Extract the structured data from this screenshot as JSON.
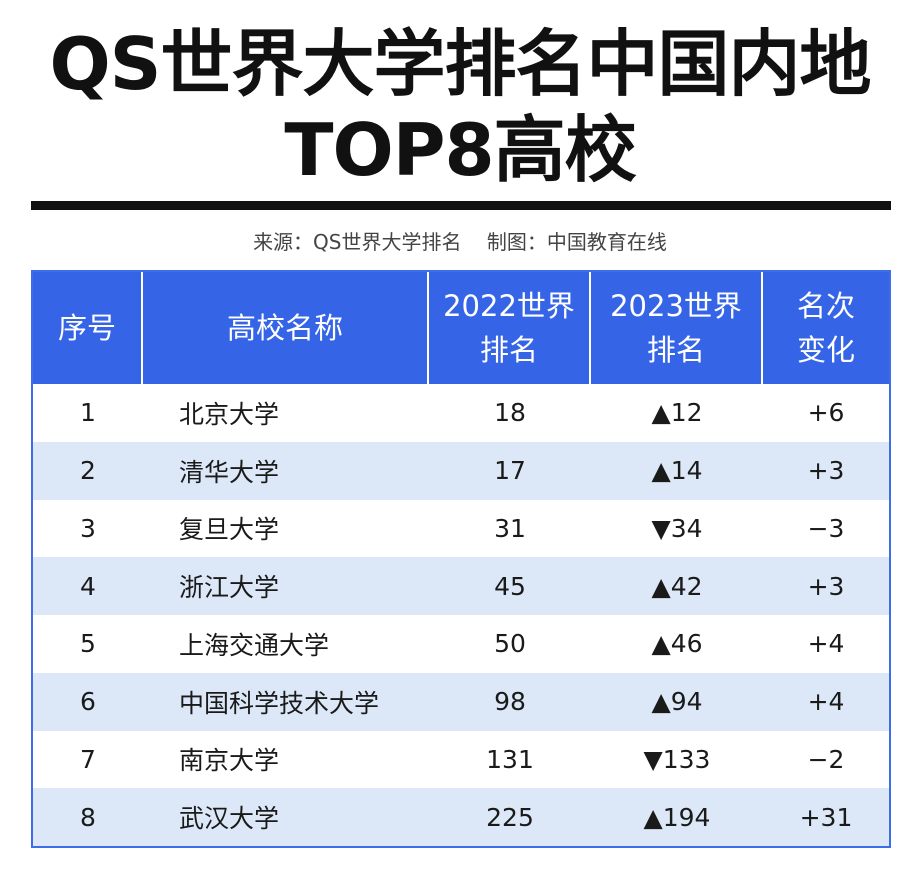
{
  "title": {
    "line1": "QS世界大学排名中国内地",
    "line2": "TOP8高校"
  },
  "source": "来源：QS世界大学排名    制图：中国教育在线",
  "table": {
    "headers": {
      "index": "序号",
      "name": "高校名称",
      "rank2022_l1": "2022世界",
      "rank2022_l2": "排名",
      "rank2023_l1": "2023世界",
      "rank2023_l2": "排名",
      "change_l1": "名次",
      "change_l2": "变化"
    },
    "rows": [
      {
        "index": "1",
        "name": "北京大学",
        "rank2022": "18",
        "rank2023": "▲12",
        "change": "+6"
      },
      {
        "index": "2",
        "name": "清华大学",
        "rank2022": "17",
        "rank2023": "▲14",
        "change": "+3"
      },
      {
        "index": "3",
        "name": "复旦大学",
        "rank2022": "31",
        "rank2023": "▼34",
        "change": "−3"
      },
      {
        "index": "4",
        "name": "浙江大学",
        "rank2022": "45",
        "rank2023": "▲42",
        "change": "+3"
      },
      {
        "index": "5",
        "name": "上海交通大学",
        "rank2022": "50",
        "rank2023": "▲46",
        "change": "+4"
      },
      {
        "index": "6",
        "name": "中国科学技术大学",
        "rank2022": "98",
        "rank2023": "▲94",
        "change": "+4"
      },
      {
        "index": "7",
        "name": "南京大学",
        "rank2022": "131",
        "rank2023": "▼133",
        "change": "−2"
      },
      {
        "index": "8",
        "name": "武汉大学",
        "rank2022": "225",
        "rank2023": "▲194",
        "change": "+31"
      }
    ]
  },
  "colors": {
    "header": "#3565e6",
    "stripe": "#dce8f7",
    "rule": "#111111"
  }
}
